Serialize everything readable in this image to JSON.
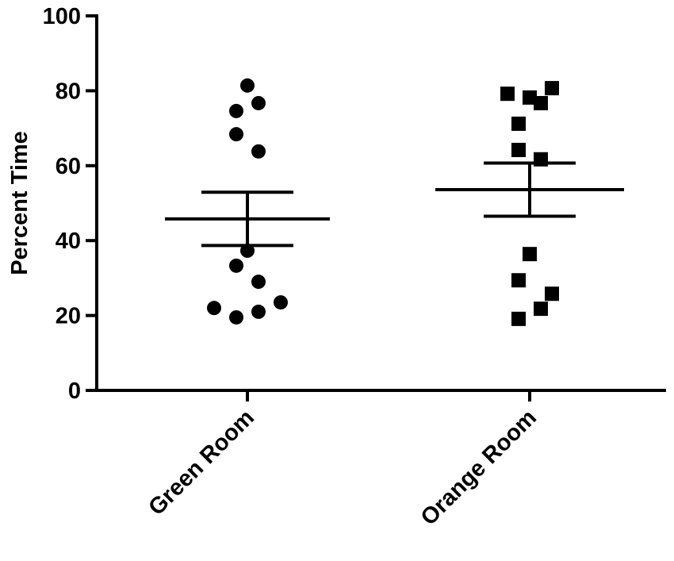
{
  "chart_data": {
    "type": "dot",
    "y_label": "Percent Time",
    "categories": [
      "Green Room",
      "Orange Room"
    ],
    "groups": [
      {
        "marker": "circle",
        "values": [
          81.4,
          74.6,
          76.7,
          68.4,
          63.8,
          37.3,
          33.3,
          29.0,
          22.0,
          23.5,
          19.5,
          21.0
        ],
        "mean": 45.8,
        "sem": 7.1
      },
      {
        "marker": "square",
        "values": [
          79.2,
          80.7,
          78.2,
          76.7,
          71.2,
          64.2,
          61.7,
          36.4,
          29.4,
          25.8,
          21.8,
          19.1
        ],
        "mean": 53.6,
        "sem": 7.1
      }
    ],
    "color": "#000000",
    "ylim": [
      0,
      100
    ],
    "yticks": [
      0,
      20,
      40,
      60,
      80,
      100
    ]
  }
}
